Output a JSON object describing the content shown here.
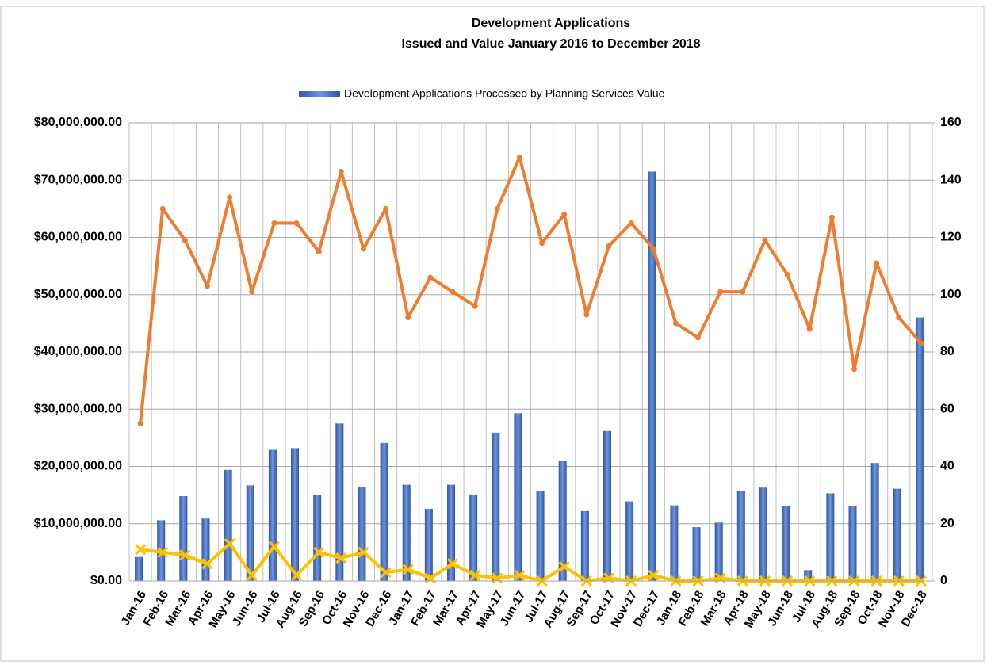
{
  "chart_data": {
    "type": "bar_line",
    "title": "Development Applications",
    "subtitle": "Issued and  Value January 2016 to December 2018",
    "categories": [
      "Jan-16",
      "Feb-16",
      "Mar-16",
      "Apr-16",
      "May-16",
      "Jun-16",
      "Jul-16",
      "Aug-16",
      "Sep-16",
      "Oct-16",
      "Nov-16",
      "Dec-16",
      "Jan-17",
      "Feb-17",
      "Mar-17",
      "Apr-17",
      "May-17",
      "Jun-17",
      "Jul-17",
      "Aug-17",
      "Sep-17",
      "Oct-17",
      "Nov-17",
      "Dec-17",
      "Jan-18",
      "Feb-18",
      "Mar-18",
      "Apr-18",
      "May-18",
      "Jun-18",
      "Jul-18",
      "Aug-18",
      "Sep-18",
      "Oct-18",
      "Nov-18",
      "Dec-18"
    ],
    "series": [
      {
        "name": "Development Applications Processed by Planning Services Value",
        "type": "bar",
        "color": "#4472c4",
        "values": [
          4200000,
          10600000,
          14800000,
          10900000,
          19400000,
          16700000,
          22900000,
          23200000,
          15000000,
          27500000,
          16400000,
          24100000,
          16800000,
          12600000,
          16800000,
          15100000,
          25900000,
          29300000,
          15700000,
          20900000,
          12200000,
          26200000,
          13900000,
          71500000,
          13200000,
          9400000,
          10200000,
          15700000,
          16300000,
          13100000,
          1900000,
          15300000,
          13100000,
          20600000,
          16100000,
          46000000
        ]
      },
      {
        "type": "line",
        "axis": "y2",
        "color": "#ed7d31",
        "values": [
          55,
          130,
          119,
          103,
          134,
          101,
          125,
          125,
          115,
          143,
          116,
          130,
          92,
          106,
          101,
          96,
          130,
          148,
          118,
          128,
          93,
          117,
          125,
          116,
          90,
          85,
          101,
          101,
          119,
          107,
          88,
          127,
          74,
          111,
          92,
          83
        ]
      },
      {
        "type": "line",
        "axis": "y2",
        "color": "#ffc000",
        "values": [
          11,
          10,
          9,
          6,
          13,
          2,
          12,
          2,
          10,
          8,
          10,
          3,
          4,
          1,
          6,
          2,
          1,
          2,
          0,
          5,
          0,
          1,
          0,
          2,
          0,
          0,
          1,
          0,
          0,
          0,
          0,
          0,
          0,
          0,
          0,
          0
        ]
      }
    ],
    "ylim": [
      0,
      80000000
    ],
    "yticks": [
      {
        "value": 0,
        "label": "$0.00"
      },
      {
        "value": 10000000,
        "label": "$10,000,000.00"
      },
      {
        "value": 20000000,
        "label": "$20,000,000.00"
      },
      {
        "value": 30000000,
        "label": "$30,000,000.00"
      },
      {
        "value": 40000000,
        "label": "$40,000,000.00"
      },
      {
        "value": 50000000,
        "label": "$50,000,000.00"
      },
      {
        "value": 60000000,
        "label": "$60,000,000.00"
      },
      {
        "value": 70000000,
        "label": "$70,000,000.00"
      },
      {
        "value": 80000000,
        "label": "$80,000,000.00"
      }
    ],
    "y2lim": [
      0,
      160
    ],
    "y2ticks": [
      0,
      20,
      40,
      60,
      80,
      100,
      120,
      140,
      160
    ],
    "grid": true,
    "legend": "top"
  }
}
